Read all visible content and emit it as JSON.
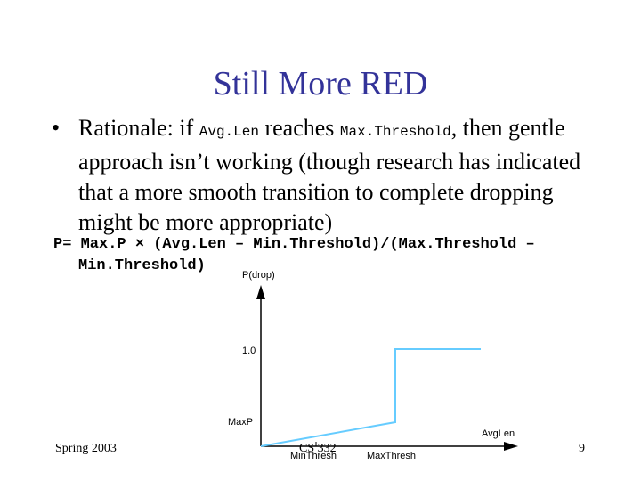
{
  "slide": {
    "title": "Still More RED",
    "bullet": {
      "symbol": "•",
      "t1": "Rationale: if ",
      "code1": "Avg.Len",
      "t2": " reaches ",
      "code2": "Max.Threshold",
      "t3": ", then gentle approach isn’t working (though research has indicated that a more smooth transition to complete dropping might be more appropriate)"
    },
    "formula": {
      "line1": "P= Max.P × (Avg.Len – Min.Threshold)/(Max.Threshold –",
      "line2": "Min.Threshold)"
    },
    "graph": {
      "y_axis_label": "P(drop)",
      "y_tick_high": "1.0",
      "y_tick_low": "MaxP",
      "x_axis_label": "AvgLen",
      "x_tick_min": "MinThresh",
      "x_tick_max": "MaxThresh",
      "line_color": "#66ccff"
    },
    "footer": {
      "left": "Spring 2003",
      "center": "CS 332",
      "right": "9"
    }
  }
}
